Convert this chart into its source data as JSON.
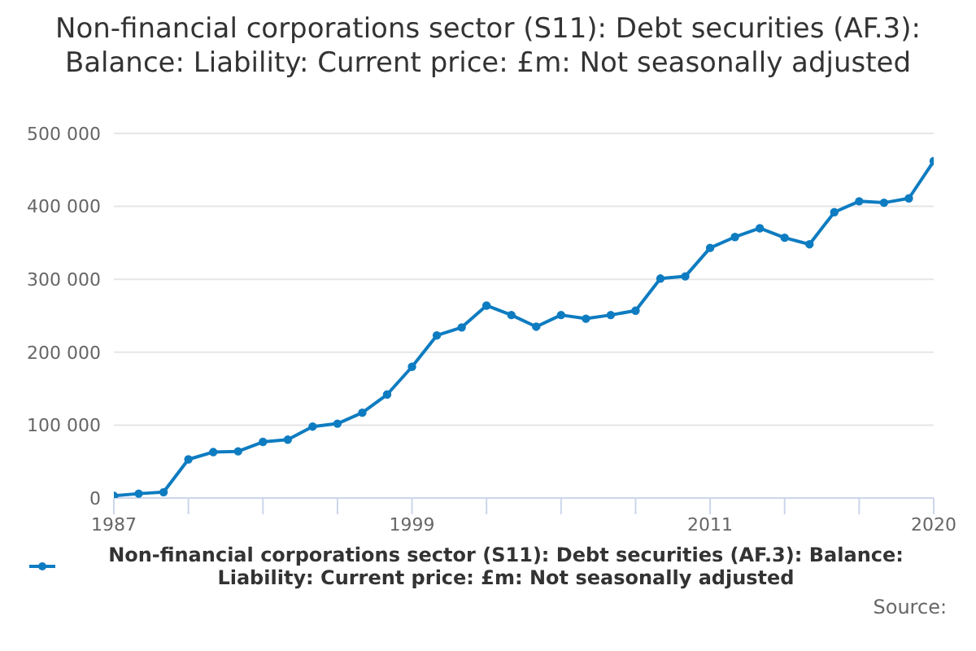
{
  "chart_data": {
    "type": "line",
    "title": "Non-financial corporations sector (S11): Debt securities (AF.3): Balance: Liability: Current price: £m: Not seasonally adjusted",
    "x": [
      1987,
      1988,
      1989,
      1990,
      1991,
      1992,
      1993,
      1994,
      1995,
      1996,
      1997,
      1998,
      1999,
      2000,
      2001,
      2002,
      2003,
      2004,
      2005,
      2006,
      2007,
      2008,
      2009,
      2010,
      2011,
      2012,
      2013,
      2014,
      2015,
      2016,
      2017,
      2018,
      2019,
      2020
    ],
    "series": [
      {
        "name": "Non-financial corporations sector (S11): Debt securities (AF.3): Balance: Liability: Current price: £m: Not seasonally adjusted",
        "color": "#0e7cc1",
        "values": [
          3000,
          6000,
          8000,
          53000,
          63000,
          64000,
          77000,
          80000,
          98000,
          102000,
          117000,
          142000,
          180000,
          223000,
          234000,
          264000,
          251000,
          235000,
          251000,
          246000,
          251000,
          257000,
          301000,
          304000,
          343000,
          358000,
          370000,
          357000,
          348000,
          392000,
          407000,
          405000,
          411000,
          462000
        ]
      }
    ],
    "xlim": [
      1987,
      2020
    ],
    "xticks": [
      1987,
      {
        "value": 1990,
        "label": null
      },
      {
        "value": 1993,
        "label": null
      },
      {
        "value": 1996,
        "label": null
      },
      1999,
      {
        "value": 2002,
        "label": null
      },
      {
        "value": 2005,
        "label": null
      },
      {
        "value": 2008,
        "label": null
      },
      2011,
      {
        "value": 2014,
        "label": null
      },
      {
        "value": 2017,
        "label": null
      },
      2020
    ],
    "ylim": [
      0,
      500000
    ],
    "yticks": [
      0,
      {
        "value": 100000,
        "label": "100 000"
      },
      {
        "value": 200000,
        "label": "200 000"
      },
      {
        "value": 300000,
        "label": "300 000"
      },
      {
        "value": 400000,
        "label": "400 000"
      },
      {
        "value": 500000,
        "label": "500 000"
      }
    ],
    "grid": "y",
    "legend": "bottom",
    "marker": "circle",
    "line_style": "solid",
    "annotations": [
      "Source:"
    ]
  }
}
